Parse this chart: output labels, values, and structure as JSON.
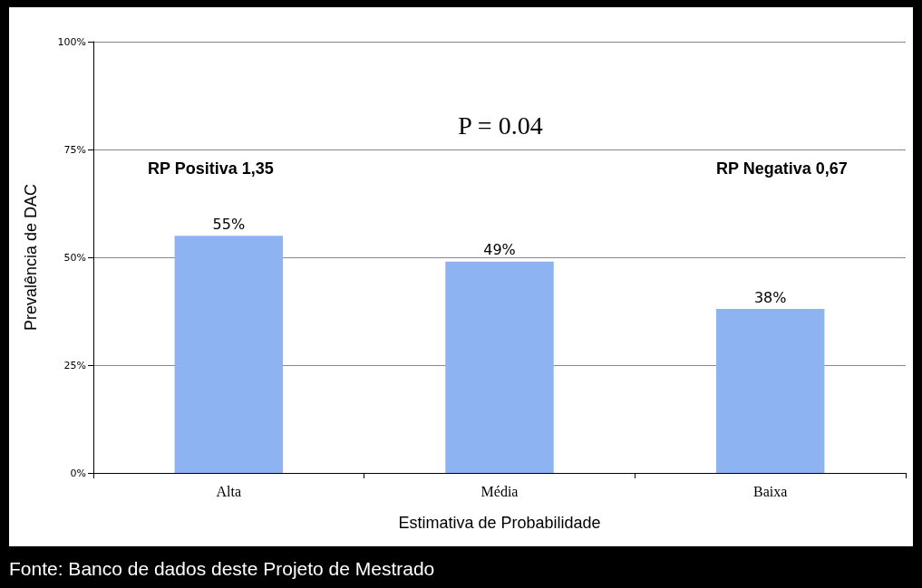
{
  "chart_data": {
    "type": "bar",
    "xlabel": "Estimativa de Probabilidade",
    "ylabel": "Prevalência de DAC",
    "categories": [
      "Alta",
      "Média",
      "Baixa"
    ],
    "values": [
      55,
      49,
      38
    ],
    "value_labels": [
      "55%",
      "49%",
      "38%"
    ],
    "color": "#8db3f2",
    "ylim": [
      0,
      100
    ],
    "yticks": [
      {
        "value": 0,
        "label": "0%"
      },
      {
        "value": 25,
        "label": "25%"
      },
      {
        "value": 50,
        "label": "50%"
      },
      {
        "value": 75,
        "label": "75%"
      },
      {
        "value": 100,
        "label": "100%"
      }
    ],
    "grid": "y",
    "annotations": [
      "P = 0.04",
      "RP Positiva 1,35",
      "RP Negativa 0,67",
      "Fonte: Banco de dados deste Projeto de Mestrado"
    ]
  }
}
